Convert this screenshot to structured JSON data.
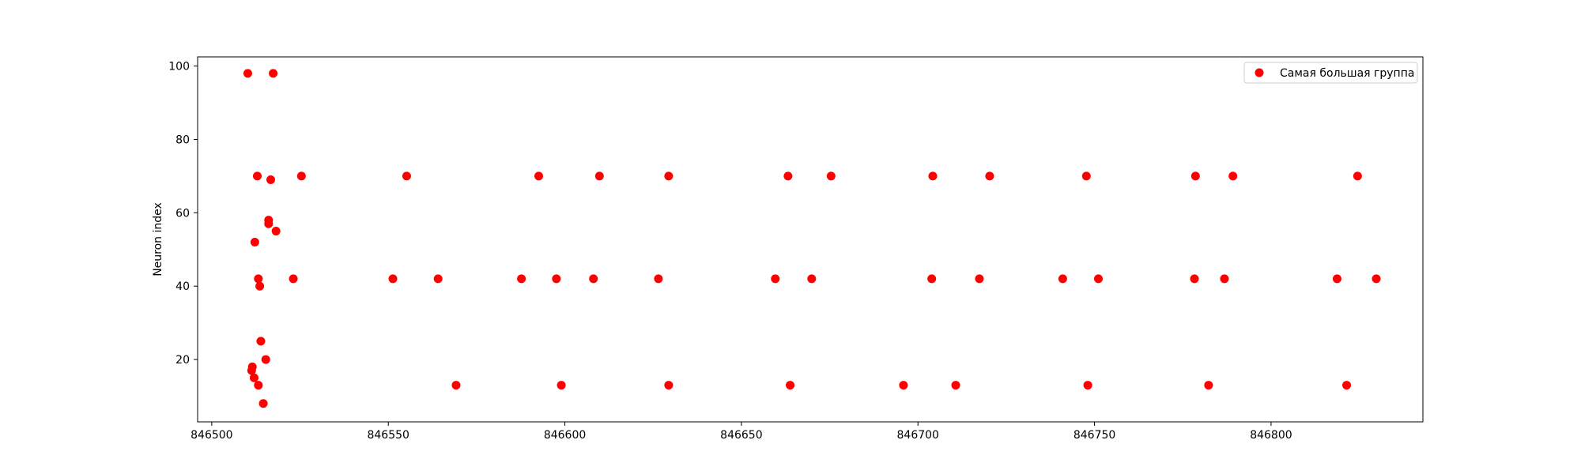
{
  "chart_data": {
    "type": "scatter",
    "title": "",
    "xlabel": "",
    "ylabel": "Neuron index",
    "xlim": [
      846496,
      846843
    ],
    "ylim": [
      3,
      102.5
    ],
    "xticks": [
      846500,
      846550,
      846600,
      846650,
      846700,
      846750,
      846800
    ],
    "yticks": [
      20,
      40,
      60,
      80,
      100
    ],
    "grid": false,
    "legend_position": "top-right",
    "series": [
      {
        "name": "Самая большая группа",
        "color": "#ff0000",
        "points": [
          [
            846510.2,
            98
          ],
          [
            846517.4,
            98
          ],
          [
            846512.9,
            70
          ],
          [
            846516.7,
            69
          ],
          [
            846525.4,
            70
          ],
          [
            846555.2,
            70
          ],
          [
            846592.6,
            70
          ],
          [
            846609.8,
            70
          ],
          [
            846629.4,
            70
          ],
          [
            846663.2,
            70
          ],
          [
            846675.4,
            70
          ],
          [
            846704.2,
            70
          ],
          [
            846720.3,
            70
          ],
          [
            846747.7,
            70
          ],
          [
            846778.6,
            70
          ],
          [
            846789.2,
            70
          ],
          [
            846824.5,
            70
          ],
          [
            846516.1,
            58
          ],
          [
            846516.1,
            57
          ],
          [
            846518.2,
            55
          ],
          [
            846512.2,
            52
          ],
          [
            846513.2,
            42
          ],
          [
            846523.1,
            42
          ],
          [
            846551.3,
            42
          ],
          [
            846564.1,
            42
          ],
          [
            846587.7,
            42
          ],
          [
            846597.6,
            42
          ],
          [
            846608.1,
            42
          ],
          [
            846626.5,
            42
          ],
          [
            846659.6,
            42
          ],
          [
            846669.9,
            42
          ],
          [
            846703.9,
            42
          ],
          [
            846717.4,
            42
          ],
          [
            846741.0,
            42
          ],
          [
            846751.1,
            42
          ],
          [
            846778.3,
            42
          ],
          [
            846786.8,
            42
          ],
          [
            846818.7,
            42
          ],
          [
            846829.8,
            42
          ],
          [
            846513.6,
            40
          ],
          [
            846513.9,
            25
          ],
          [
            846515.3,
            20
          ],
          [
            846511.5,
            18
          ],
          [
            846511.3,
            17
          ],
          [
            846512.0,
            15
          ],
          [
            846513.2,
            13
          ],
          [
            846569.2,
            13
          ],
          [
            846599.0,
            13
          ],
          [
            846629.4,
            13
          ],
          [
            846663.8,
            13
          ],
          [
            846695.9,
            13
          ],
          [
            846710.7,
            13
          ],
          [
            846748.1,
            13
          ],
          [
            846782.3,
            13
          ],
          [
            846821.4,
            13
          ],
          [
            846514.6,
            8
          ]
        ]
      }
    ]
  }
}
